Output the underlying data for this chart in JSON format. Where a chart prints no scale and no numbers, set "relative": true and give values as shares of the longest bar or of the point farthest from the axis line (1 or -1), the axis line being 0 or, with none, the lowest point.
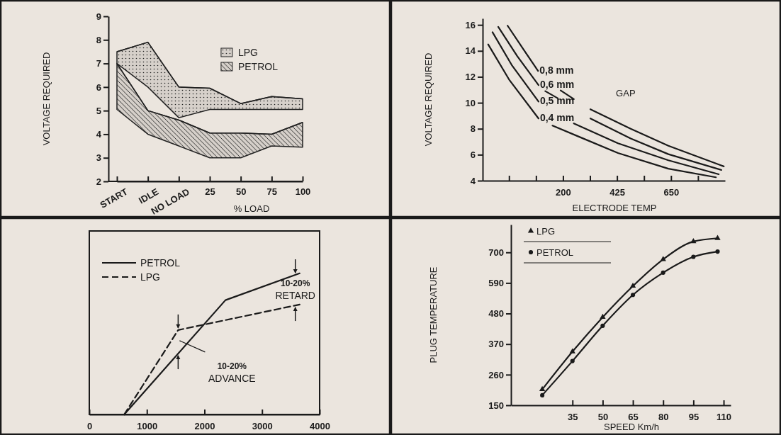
{
  "chart_data": [
    {
      "type": "line",
      "ylabel": "VOLTAGE REQUIRED",
      "xlabel": "% LOAD",
      "categories": [
        "START",
        "IDLE",
        "NO LOAD",
        "25",
        "50",
        "75",
        "100"
      ],
      "ylim": [
        2,
        9
      ],
      "yticks": [
        2,
        3,
        4,
        5,
        6,
        7,
        8,
        9
      ],
      "legend": "top right",
      "series": [
        {
          "name": "LPG",
          "color": "#222222",
          "values": [
            7.5,
            7.9,
            6.0,
            5.95,
            5.3,
            5.6,
            5.5
          ],
          "upper": [
            7.5,
            7.9,
            6.0,
            5.95,
            5.3,
            5.6,
            5.5
          ],
          "lower": [
            7.0,
            6.0,
            4.7,
            5.05,
            5.05,
            5.05,
            5.05
          ]
        },
        {
          "name": "PETROL",
          "color": "#222222",
          "values": [
            7.0,
            5.0,
            4.6,
            4.05,
            4.05,
            4.0,
            4.5
          ],
          "upper": [
            7.0,
            5.0,
            4.6,
            4.05,
            4.05,
            4.0,
            4.5
          ],
          "lower": [
            5.05,
            4.0,
            3.5,
            3.0,
            3.0,
            3.5,
            3.45
          ]
        }
      ]
    },
    {
      "type": "line",
      "ylabel": "VOLTAGE REQUIRED",
      "xlabel": "ELECTRODE TEMP",
      "annotations": [
        "GAP"
      ],
      "xlim": [
        -135,
        875
      ],
      "xticks": [
        {
          "value": -25,
          "label": null
        },
        {
          "value": 87.5,
          "label": null
        },
        200,
        {
          "value": 312.5,
          "label": null
        },
        425,
        {
          "value": 537.5,
          "label": null
        },
        650,
        {
          "value": 762.5,
          "label": null
        }
      ],
      "ylim": [
        4,
        16.5
      ],
      "yticks": [
        4,
        6,
        8,
        10,
        12,
        14,
        16
      ],
      "series": [
        {
          "name": "0,8 mm",
          "color": "#1a1a1a",
          "x": [
            -31,
            40,
            96,
            143,
            190,
            245,
            280,
            314,
            482,
            639,
            870
          ],
          "values": [
            15.94,
            13.98,
            12.45,
            null,
            10.95,
            10.28,
            null,
            9.5,
            8.0,
            6.69,
            5.1
          ]
        },
        {
          "name": "0,6 mm",
          "color": "#1a1a1a",
          "x": [
            -70,
            9,
            98,
            112,
            126,
            179,
            250,
            314,
            482,
            639,
            860
          ],
          "values": [
            15.85,
            13.6,
            11.36,
            null,
            10.9,
            10.34,
            null,
            8.79,
            7.25,
            6.04,
            4.82
          ]
        },
        {
          "name": "0,5 mm",
          "color": "#1a1a1a",
          "x": [
            -94,
            -12,
            98,
            170,
            245,
            429,
            639,
            849
          ],
          "values": [
            15.44,
            12.86,
            10.09,
            null,
            8.41,
            6.88,
            5.57,
            4.49
          ]
        },
        {
          "name": "0,4 mm",
          "color": "#1a1a1a",
          "x": [
            -112,
            -23,
            98,
            127,
            156,
            271,
            429,
            639,
            837
          ],
          "values": [
            14.5,
            11.74,
            8.79,
            null,
            8.24,
            7.35,
            6.13,
            4.92,
            4.26
          ]
        }
      ]
    },
    {
      "type": "line",
      "relative": true,
      "annotations": [
        "10-20% ADVANCE",
        "10-20% RETARD"
      ],
      "xlim": [
        0,
        4000
      ],
      "xticks": [
        0,
        1000,
        2000,
        3000,
        4000
      ],
      "legend": "top left",
      "series": [
        {
          "name": "PETROL",
          "color": "#1a1a1a",
          "line_style": "solid",
          "x": [
            607,
            2365,
            3653
          ],
          "values": [
            0,
            0.81,
            1
          ]
        },
        {
          "name": "LPG",
          "color": "#1a1a1a",
          "line_style": "dashed",
          "x": [
            607,
            1543,
            3653
          ],
          "values": [
            0,
            0.598,
            0.779
          ]
        }
      ]
    },
    {
      "type": "line",
      "ylabel": "PLUG TEMPERATURE",
      "xlabel": "SPEED Km/h",
      "xlim": [
        4.5,
        113.5
      ],
      "xticks": [
        35,
        50,
        65,
        80,
        95,
        110
      ],
      "ylim": [
        150,
        800
      ],
      "yticks": [
        150,
        260,
        370,
        480,
        590,
        700
      ],
      "legend": "top left",
      "x": [
        20,
        35,
        50,
        65,
        80,
        95,
        107
      ],
      "series": [
        {
          "name": "LPG",
          "color": "#1a1a1a",
          "marker": "triangle",
          "values": [
            207,
            343,
            467,
            579,
            675,
            739,
            751
          ]
        },
        {
          "name": "PETROL",
          "color": "#1a1a1a",
          "marker": "circle",
          "values": [
            186,
            309,
            436,
            547,
            627,
            684,
            703
          ]
        }
      ]
    }
  ]
}
